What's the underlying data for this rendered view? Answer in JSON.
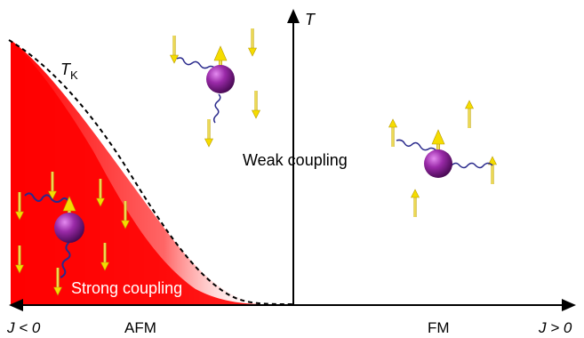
{
  "labels": {
    "t_axis": "T",
    "tk_main": "T",
    "tk_sub": "K",
    "weak_coupling": "Weak coupling",
    "strong_coupling": "Strong coupling",
    "j_negative": "J < 0",
    "afm": "AFM",
    "fm": "FM",
    "j_positive": "J > 0"
  },
  "colors": {
    "strong_region": "#ff0000",
    "impurity": "#7a1a8a",
    "spin_arrow": "#ffe800",
    "wavy_coupling": "#2a2a8c",
    "axis": "#000000"
  }
}
